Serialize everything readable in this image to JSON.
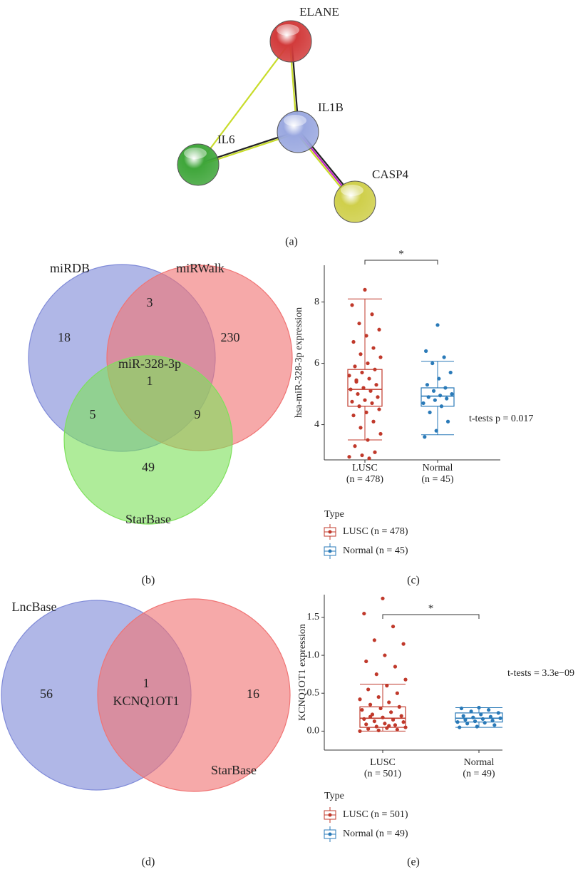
{
  "panel_labels": [
    "(a)",
    "(b)",
    "(c)",
    "(d)",
    "(e)"
  ],
  "network": {
    "nodes": [
      {
        "label": "ELANE",
        "color": "#d23b3b"
      },
      {
        "label": "IL1B",
        "color": "#9aa8e0"
      },
      {
        "label": "IL6",
        "color": "#3fa63a"
      },
      {
        "label": "CASP4",
        "color": "#cfcf4a"
      }
    ],
    "edges": [
      {
        "from": 0,
        "to": 2,
        "colors": [
          "#c8dc2a"
        ]
      },
      {
        "from": 0,
        "to": 1,
        "colors": [
          "#222222",
          "#c8dc2a"
        ]
      },
      {
        "from": 2,
        "to": 1,
        "colors": [
          "#222222",
          "#c8dc2a"
        ]
      },
      {
        "from": 1,
        "to": 3,
        "colors": [
          "#222222",
          "#c020c0",
          "#c8dc2a"
        ]
      }
    ]
  },
  "venn_b": {
    "sets": [
      "miRDB",
      "miRWalk",
      "StarBase"
    ],
    "colors": [
      "#7f8ad8",
      "#f07474",
      "#7ee05c"
    ],
    "region_counts": [
      18,
      3,
      230,
      5,
      1,
      9,
      49
    ],
    "center_label": "miR-328-3p"
  },
  "venn_d": {
    "sets": [
      "LncBase",
      "StarBase"
    ],
    "colors": [
      "#7f8ad8",
      "#f07474"
    ],
    "region_counts": [
      56,
      1,
      16
    ],
    "center_label": "KCNQ1OT1"
  },
  "chart_data": [
    {
      "type": "boxplot",
      "y_label": "hsa-miR-328-3p expression",
      "annotation": "t-tests p = 0.017",
      "significance": "*",
      "categories": [
        "LUSC",
        "Normal"
      ],
      "category_counts": [
        "(n = 478)",
        "(n = 45)"
      ],
      "legend_title": "Type",
      "legend_labels": [
        "LUSC (n = 478)",
        "Normal (n = 45)"
      ],
      "ylim": [
        2.85,
        9.2
      ],
      "yticks": [
        4,
        6,
        8
      ],
      "series": [
        {
          "color": "#c0392b",
          "min": 3.5,
          "q1": 4.6,
          "median": 5.15,
          "q3": 5.8,
          "max": 8.1,
          "points": [
            8.4,
            7.9,
            7.6,
            7.3,
            7.1,
            6.9,
            6.7,
            6.5,
            6.3,
            6.2,
            6.0,
            5.9,
            5.8,
            5.7,
            5.6,
            5.5,
            5.4,
            5.3,
            5.2,
            5.15,
            5.1,
            5.0,
            4.9,
            4.8,
            4.75,
            4.7,
            4.6,
            4.5,
            4.4,
            4.3,
            4.1,
            3.9,
            3.7,
            3.5,
            3.3,
            3.1,
            3.0,
            2.95,
            2.9,
            5.45
          ]
        },
        {
          "color": "#2a7ab8",
          "min": 3.67,
          "q1": 4.6,
          "median": 4.93,
          "q3": 5.2,
          "max": 6.07,
          "points": [
            7.25,
            6.4,
            6.2,
            6.0,
            5.7,
            5.5,
            5.3,
            5.2,
            5.1,
            5.0,
            4.95,
            4.9,
            4.85,
            4.8,
            4.7,
            4.6,
            4.4,
            4.1,
            3.8,
            3.6
          ]
        }
      ]
    },
    {
      "type": "boxplot",
      "y_label": "KCNQ1OT1 expression",
      "annotation": "t-tests = 3.3e−09",
      "significance": "*",
      "categories": [
        "LUSC",
        "Normal"
      ],
      "category_counts": [
        "(n = 501)",
        "(n = 49)"
      ],
      "legend_title": "Type",
      "legend_labels": [
        "LUSC (n = 501)",
        "Normal (n = 49)"
      ],
      "ylim": [
        -0.25,
        1.8
      ],
      "yticks": [
        {
          "value": 0,
          "label": "0.0"
        },
        0.5,
        {
          "value": 1,
          "label": "1.0"
        },
        1.5
      ],
      "series": [
        {
          "color": "#c0392b",
          "min": 0,
          "q1": 0.05,
          "median": 0.17,
          "q3": 0.32,
          "max": 0.62,
          "points": [
            1.75,
            1.55,
            1.38,
            1.2,
            1.15,
            1.0,
            0.92,
            0.85,
            0.75,
            0.68,
            0.6,
            0.55,
            0.5,
            0.45,
            0.42,
            0.38,
            0.35,
            0.32,
            0.3,
            0.28,
            0.25,
            0.22,
            0.2,
            0.18,
            0.16,
            0.15,
            0.13,
            0.12,
            0.1,
            0.09,
            0.08,
            0.06,
            0.05,
            0.04,
            0.03,
            0.02,
            0.01,
            0.0,
            0.07,
            0.19
          ]
        },
        {
          "color": "#2a7ab8",
          "min": 0.05,
          "q1": 0.12,
          "median": 0.17,
          "q3": 0.24,
          "max": 0.31,
          "points": [
            0.31,
            0.3,
            0.28,
            0.26,
            0.24,
            0.22,
            0.2,
            0.19,
            0.18,
            0.17,
            0.16,
            0.15,
            0.14,
            0.13,
            0.12,
            0.11,
            0.1,
            0.08,
            0.06,
            0.05
          ]
        }
      ]
    }
  ]
}
